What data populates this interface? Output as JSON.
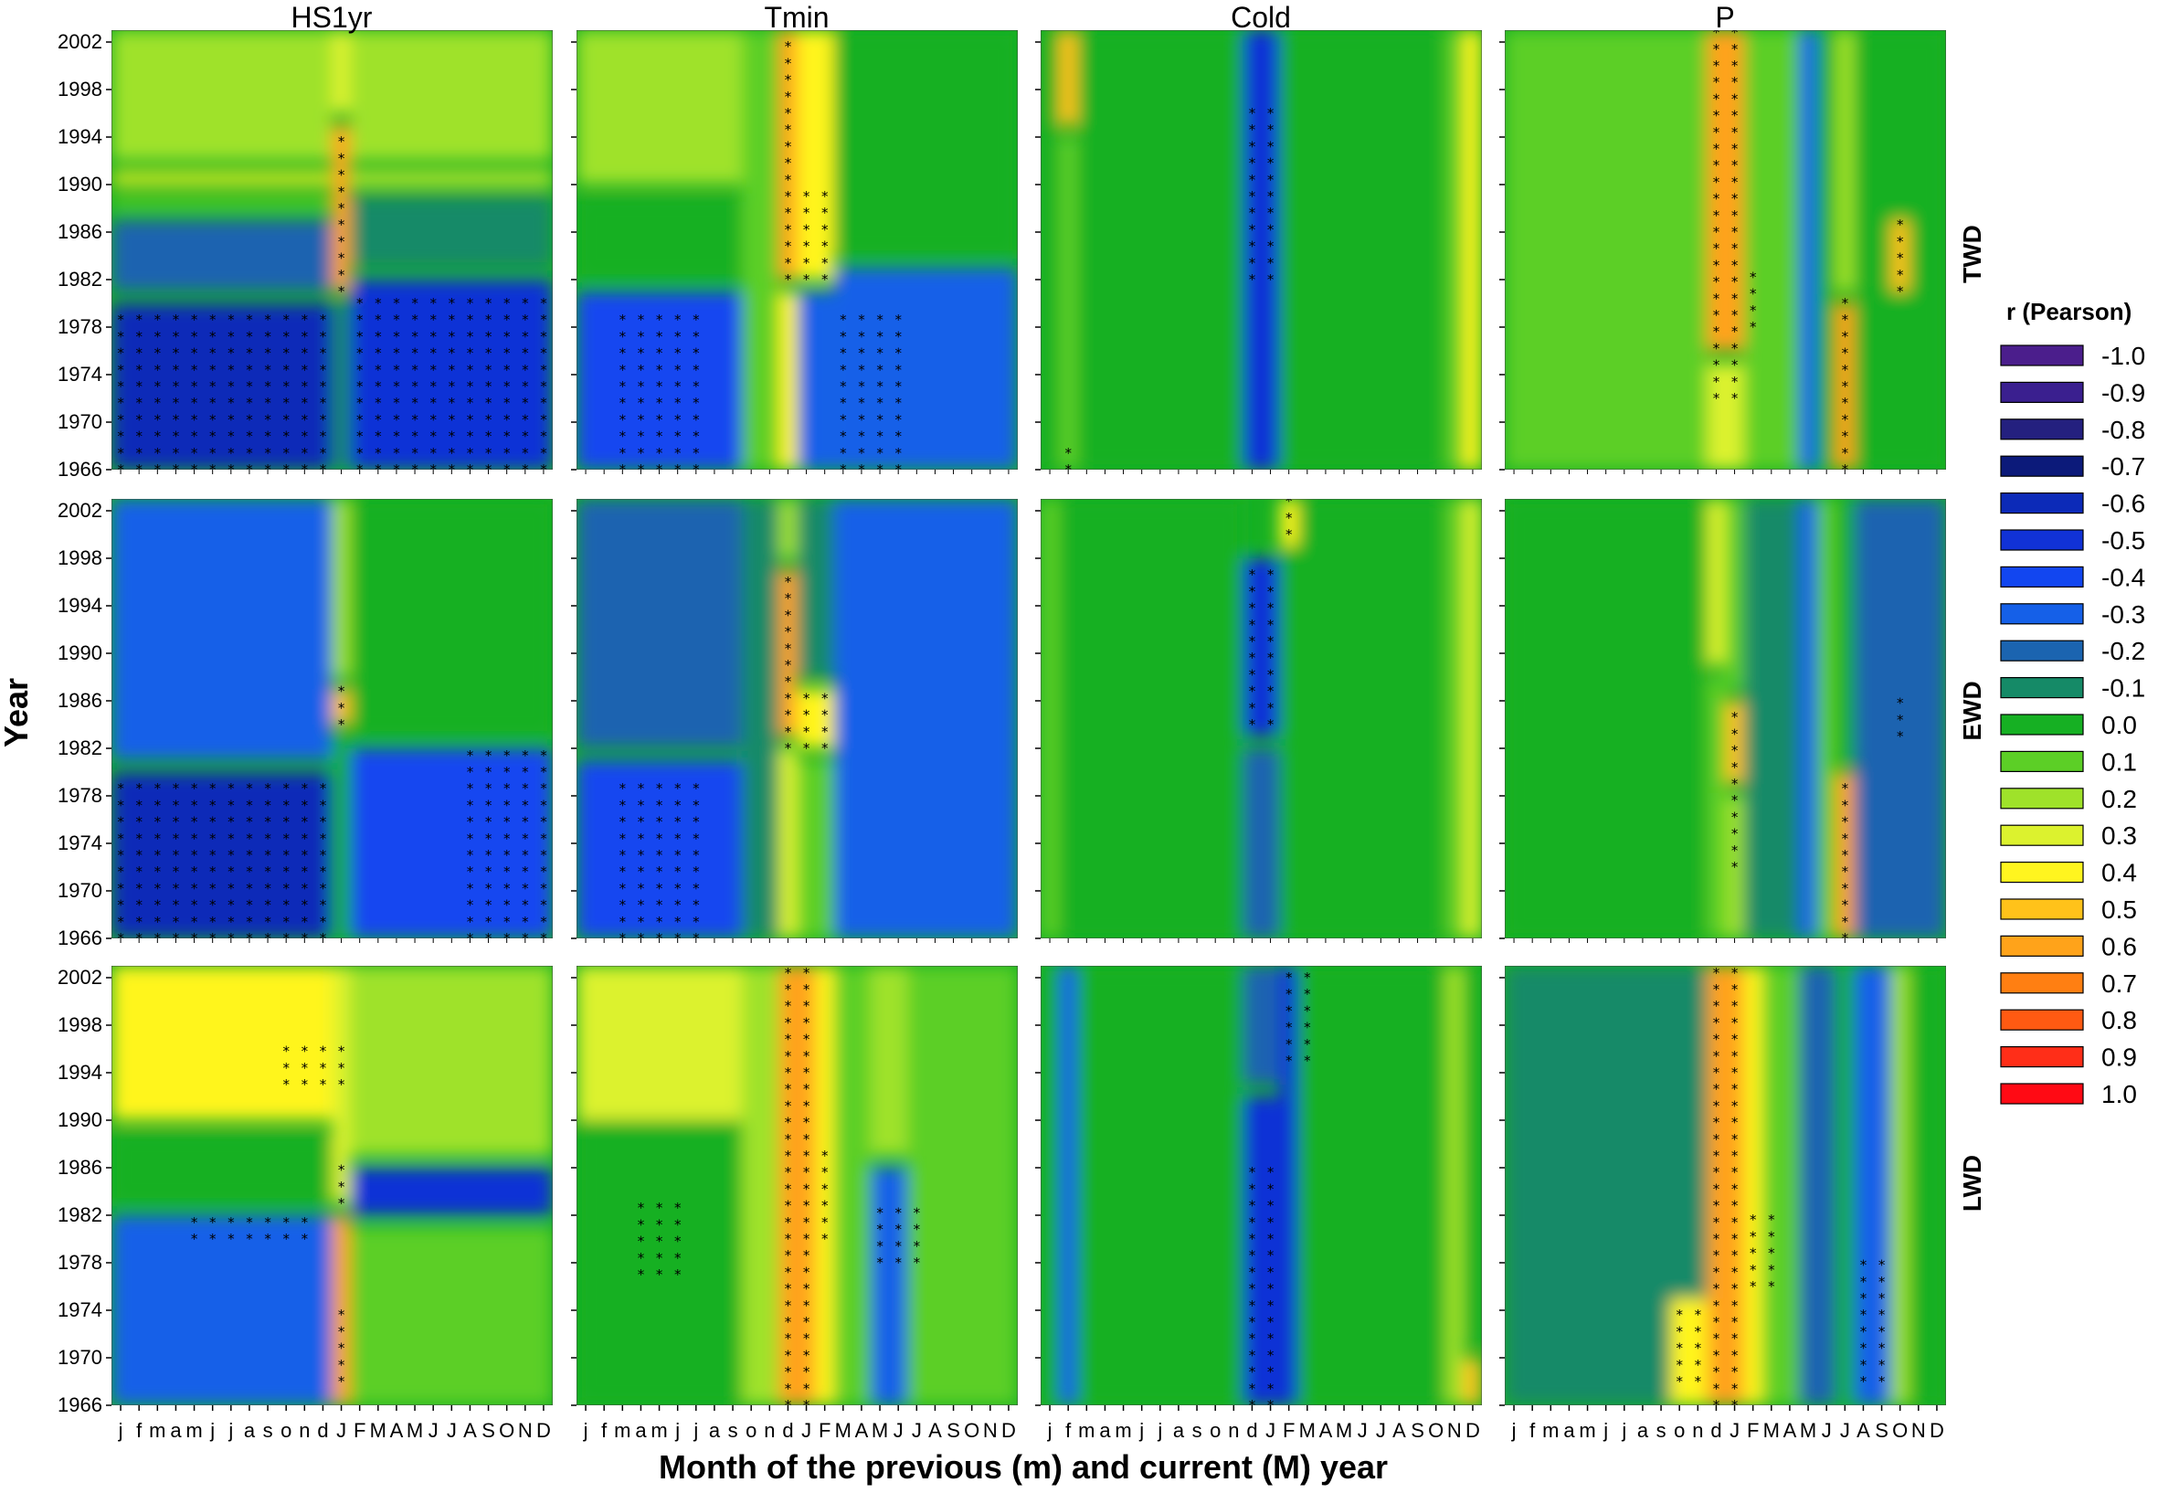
{
  "chart_data": {
    "type": "heatmap",
    "title": "",
    "xlabel": "Month of the previous (m) and current (M) year",
    "ylabel": "Year",
    "columns": [
      "HS1yr",
      "Tmin",
      "Cold",
      "P"
    ],
    "rows": [
      "TWD",
      "EWD",
      "LWD"
    ],
    "x_categories": [
      "j",
      "f",
      "m",
      "a",
      "m",
      "j",
      "j",
      "a",
      "s",
      "o",
      "n",
      "d",
      "J",
      "F",
      "M",
      "A",
      "M",
      "J",
      "J",
      "A",
      "S",
      "O",
      "N",
      "D"
    ],
    "y_ticks": [
      2002,
      1998,
      1994,
      1990,
      1986,
      1982,
      1978,
      1974,
      1970,
      1966
    ],
    "ylim": [
      1966,
      2003
    ],
    "legend": {
      "title": "r (Pearson)",
      "entries": [
        {
          "label": "-1.0",
          "color": "#4b1e8c"
        },
        {
          "label": "-0.9",
          "color": "#3a1f8f"
        },
        {
          "label": "-0.8",
          "color": "#24207f"
        },
        {
          "label": "-0.7",
          "color": "#0c1a7a"
        },
        {
          "label": "-0.6",
          "color": "#0c2ab8"
        },
        {
          "label": "-0.5",
          "color": "#1132d6"
        },
        {
          "label": "-0.4",
          "color": "#1246f0"
        },
        {
          "label": "-0.3",
          "color": "#1560e8"
        },
        {
          "label": "-0.2",
          "color": "#1b64b0"
        },
        {
          "label": "-0.1",
          "color": "#158a67"
        },
        {
          "label": "0.0",
          "color": "#16b023"
        },
        {
          "label": "0.1",
          "color": "#5ccf26"
        },
        {
          "label": "0.2",
          "color": "#9fe22a"
        },
        {
          "label": "0.3",
          "color": "#dcf22e"
        },
        {
          "label": "0.4",
          "color": "#fff51f"
        },
        {
          "label": "0.5",
          "color": "#ffc21a"
        },
        {
          "label": "0.6",
          "color": "#ffa31a"
        },
        {
          "label": "0.7",
          "color": "#ff7f12"
        },
        {
          "label": "0.8",
          "color": "#ff5a12"
        },
        {
          "label": "0.9",
          "color": "#ff2e18"
        },
        {
          "label": "1.0",
          "color": "#ff0a14"
        }
      ]
    },
    "significance_marker": "*",
    "panels": [
      {
        "row": "TWD",
        "column": "HS1yr",
        "bands": [
          [
            0,
            11,
            1966,
            1980,
            -0.6
          ],
          [
            0,
            11,
            1981,
            1987,
            -0.2
          ],
          [
            0,
            11,
            1988,
            1989,
            0.1
          ],
          [
            0,
            11,
            1990,
            1991,
            0.4
          ],
          [
            0,
            11,
            1992,
            2003,
            0.2
          ],
          [
            12,
            12,
            1966,
            1980,
            -0.1
          ],
          [
            12,
            12,
            1981,
            1995,
            0.55
          ],
          [
            12,
            12,
            1996,
            2003,
            0.3
          ],
          [
            13,
            23,
            1966,
            1982,
            -0.45
          ],
          [
            13,
            23,
            1983,
            1989,
            -0.1
          ],
          [
            13,
            23,
            1990,
            1991,
            0.35
          ],
          [
            13,
            23,
            1992,
            2003,
            0.2
          ]
        ],
        "stars": [
          [
            0,
            11,
            1966,
            1979
          ],
          [
            12,
            12,
            1981,
            1994
          ],
          [
            13,
            23,
            1966,
            1981
          ]
        ]
      },
      {
        "row": "TWD",
        "column": "Tmin",
        "bands": [
          [
            0,
            8,
            1966,
            1981,
            -0.4
          ],
          [
            0,
            8,
            1982,
            1989,
            0.0
          ],
          [
            0,
            8,
            1990,
            2003,
            0.2
          ],
          [
            9,
            10,
            1966,
            2003,
            0.1
          ],
          [
            11,
            11,
            1966,
            1981,
            0.4
          ],
          [
            11,
            11,
            1982,
            2003,
            0.55
          ],
          [
            12,
            13,
            1966,
            1981,
            -0.3
          ],
          [
            12,
            13,
            1982,
            2003,
            0.45
          ],
          [
            14,
            23,
            1966,
            1983,
            -0.35
          ],
          [
            14,
            23,
            1984,
            2003,
            0.05
          ]
        ],
        "stars": [
          [
            11,
            11,
            1982,
            2003
          ],
          [
            12,
            13,
            1982,
            1990
          ],
          [
            2,
            6,
            1966,
            1979
          ],
          [
            14,
            17,
            1966,
            1980
          ]
        ]
      },
      {
        "row": "TWD",
        "column": "Cold",
        "bands": [
          [
            0,
            0,
            1966,
            2003,
            0.0
          ],
          [
            1,
            1,
            1966,
            1994,
            0.1
          ],
          [
            1,
            1,
            1995,
            2003,
            0.5
          ],
          [
            2,
            10,
            1966,
            2003,
            0.0
          ],
          [
            11,
            12,
            1966,
            2003,
            -0.45
          ],
          [
            13,
            21,
            1966,
            2003,
            0.0
          ],
          [
            22,
            22,
            1966,
            2003,
            0.15
          ],
          [
            23,
            23,
            1966,
            2003,
            0.45
          ]
        ],
        "stars": [
          [
            11,
            12,
            1982,
            1997
          ],
          [
            1,
            1,
            1966,
            1968
          ]
        ]
      },
      {
        "row": "TWD",
        "column": "P",
        "bands": [
          [
            0,
            10,
            1966,
            2003,
            0.15
          ],
          [
            11,
            12,
            1966,
            1975,
            0.3
          ],
          [
            11,
            12,
            1976,
            2003,
            0.55
          ],
          [
            13,
            15,
            1966,
            2003,
            0.1
          ],
          [
            16,
            16,
            1966,
            2003,
            -0.3
          ],
          [
            17,
            17,
            1966,
            2003,
            0.0
          ],
          [
            18,
            18,
            1966,
            1980,
            0.6
          ],
          [
            18,
            18,
            1981,
            2003,
            0.2
          ],
          [
            19,
            23,
            1966,
            2003,
            0.05
          ],
          [
            21,
            21,
            1981,
            1987,
            0.5
          ]
        ],
        "stars": [
          [
            11,
            12,
            1972,
            2003
          ],
          [
            13,
            13,
            1978,
            1983
          ],
          [
            18,
            18,
            1966,
            1981
          ],
          [
            21,
            21,
            1981,
            1987
          ]
        ]
      },
      {
        "row": "EWD",
        "column": "HS1yr",
        "bands": [
          [
            0,
            11,
            1966,
            1980,
            -0.6
          ],
          [
            0,
            11,
            1981,
            2003,
            -0.35
          ],
          [
            12,
            12,
            1966,
            1983,
            0.0
          ],
          [
            12,
            12,
            1984,
            1987,
            0.5
          ],
          [
            12,
            12,
            1988,
            2003,
            0.2
          ],
          [
            13,
            23,
            1966,
            1982,
            -0.4
          ],
          [
            13,
            23,
            1983,
            2003,
            0.0
          ]
        ],
        "stars": [
          [
            0,
            11,
            1966,
            1980
          ],
          [
            12,
            12,
            1984,
            1987
          ],
          [
            19,
            23,
            1966,
            1982
          ]
        ]
      },
      {
        "row": "EWD",
        "column": "Tmin",
        "bands": [
          [
            0,
            8,
            1966,
            1981,
            -0.4
          ],
          [
            0,
            8,
            1982,
            2003,
            -0.2
          ],
          [
            9,
            10,
            1966,
            2003,
            -0.1
          ],
          [
            11,
            11,
            1966,
            1982,
            0.3
          ],
          [
            11,
            11,
            1983,
            1997,
            0.55
          ],
          [
            11,
            11,
            1998,
            2003,
            0.2
          ],
          [
            12,
            13,
            1966,
            1981,
            0.1
          ],
          [
            12,
            13,
            1982,
            1987,
            0.45
          ],
          [
            12,
            13,
            1988,
            2003,
            -0.1
          ],
          [
            14,
            23,
            1966,
            2003,
            -0.35
          ]
        ],
        "stars": [
          [
            11,
            11,
            1982,
            1997
          ],
          [
            12,
            13,
            1982,
            1987
          ],
          [
            2,
            6,
            1966,
            1980
          ]
        ]
      },
      {
        "row": "EWD",
        "column": "Cold",
        "bands": [
          [
            0,
            0,
            1966,
            2003,
            0.15
          ],
          [
            1,
            10,
            1966,
            2003,
            0.0
          ],
          [
            11,
            12,
            1966,
            1982,
            -0.2
          ],
          [
            11,
            12,
            1983,
            1998,
            -0.45
          ],
          [
            13,
            21,
            1966,
            2003,
            0.0
          ],
          [
            13,
            13,
            1999,
            2003,
            0.45
          ],
          [
            22,
            22,
            1966,
            2003,
            0.1
          ],
          [
            23,
            23,
            1966,
            2003,
            0.3
          ]
        ],
        "stars": [
          [
            11,
            12,
            1984,
            1998
          ],
          [
            13,
            13,
            2000,
            2003
          ]
        ]
      },
      {
        "row": "EWD",
        "column": "P",
        "bands": [
          [
            0,
            10,
            1966,
            2003,
            0.0
          ],
          [
            11,
            11,
            1966,
            1988,
            0.1
          ],
          [
            11,
            11,
            1989,
            2003,
            0.3
          ],
          [
            12,
            12,
            1966,
            1978,
            0.2
          ],
          [
            12,
            12,
            1979,
            1986,
            0.5
          ],
          [
            12,
            12,
            1987,
            2003,
            0.1
          ],
          [
            13,
            15,
            1966,
            2003,
            -0.1
          ],
          [
            16,
            16,
            1966,
            2003,
            -0.35
          ],
          [
            17,
            17,
            1966,
            2003,
            0.1
          ],
          [
            18,
            18,
            1966,
            1980,
            0.55
          ],
          [
            18,
            18,
            1981,
            2003,
            0.0
          ],
          [
            19,
            23,
            1966,
            2003,
            -0.2
          ]
        ],
        "stars": [
          [
            12,
            12,
            1972,
            1986
          ],
          [
            18,
            18,
            1966,
            1980
          ],
          [
            21,
            21,
            1983,
            1987
          ]
        ]
      },
      {
        "row": "LWD",
        "column": "HS1yr",
        "bands": [
          [
            0,
            11,
            1966,
            1982,
            -0.3
          ],
          [
            0,
            11,
            1983,
            1989,
            0.0
          ],
          [
            0,
            11,
            1990,
            2003,
            0.4
          ],
          [
            12,
            12,
            1966,
            1982,
            0.55
          ],
          [
            12,
            12,
            1983,
            2003,
            0.35
          ],
          [
            13,
            23,
            1966,
            1981,
            0.15
          ],
          [
            13,
            23,
            1982,
            1986,
            -0.45
          ],
          [
            13,
            23,
            1987,
            2003,
            0.25
          ]
        ],
        "stars": [
          [
            12,
            12,
            1968,
            1974
          ],
          [
            12,
            12,
            1983,
            1987
          ],
          [
            4,
            10,
            1980,
            1982
          ],
          [
            9,
            12,
            1993,
            1996
          ]
        ]
      },
      {
        "row": "LWD",
        "column": "Tmin",
        "bands": [
          [
            0,
            8,
            1966,
            2003,
            0.0
          ],
          [
            0,
            8,
            1990,
            2003,
            0.3
          ],
          [
            9,
            10,
            1966,
            2003,
            0.2
          ],
          [
            11,
            12,
            1966,
            2003,
            0.6
          ],
          [
            13,
            13,
            1966,
            2003,
            0.4
          ],
          [
            14,
            15,
            1966,
            2003,
            0.1
          ],
          [
            16,
            17,
            1966,
            1986,
            -0.35
          ],
          [
            16,
            17,
            1987,
            2003,
            0.25
          ],
          [
            18,
            23,
            1966,
            2003,
            0.1
          ]
        ],
        "stars": [
          [
            11,
            12,
            1966,
            2003
          ],
          [
            13,
            13,
            1980,
            1988
          ],
          [
            3,
            5,
            1977,
            1984
          ],
          [
            16,
            18,
            1978,
            1983
          ]
        ]
      },
      {
        "row": "LWD",
        "column": "Cold",
        "bands": [
          [
            0,
            0,
            1966,
            2003,
            0.0
          ],
          [
            1,
            1,
            1966,
            2003,
            -0.3
          ],
          [
            2,
            10,
            1966,
            2003,
            0.0
          ],
          [
            11,
            12,
            1966,
            1992,
            -0.45
          ],
          [
            11,
            12,
            1993,
            2003,
            -0.2
          ],
          [
            13,
            13,
            1966,
            2003,
            -0.45
          ],
          [
            14,
            21,
            1966,
            2003,
            0.0
          ],
          [
            22,
            22,
            1966,
            2003,
            0.2
          ],
          [
            23,
            23,
            1966,
            1970,
            0.5
          ],
          [
            23,
            23,
            1971,
            2003,
            0.0
          ]
        ],
        "stars": [
          [
            11,
            12,
            1966,
            1987
          ],
          [
            13,
            14,
            1995,
            2003
          ]
        ]
      },
      {
        "row": "LWD",
        "column": "P",
        "bands": [
          [
            0,
            10,
            1966,
            2003,
            -0.1
          ],
          [
            9,
            10,
            1966,
            1975,
            0.45
          ],
          [
            11,
            12,
            1966,
            2003,
            0.6
          ],
          [
            13,
            13,
            1966,
            2003,
            0.45
          ],
          [
            14,
            15,
            1966,
            2003,
            0.1
          ],
          [
            16,
            17,
            1966,
            2003,
            -0.2
          ],
          [
            18,
            18,
            1966,
            2003,
            0.05
          ],
          [
            19,
            20,
            1966,
            2003,
            -0.3
          ],
          [
            21,
            21,
            1966,
            2003,
            0.2
          ],
          [
            22,
            23,
            1966,
            2003,
            0.0
          ]
        ],
        "stars": [
          [
            11,
            12,
            1966,
            2003
          ],
          [
            13,
            14,
            1976,
            1983
          ],
          [
            9,
            10,
            1968,
            1975
          ],
          [
            19,
            20,
            1968,
            1978
          ]
        ]
      }
    ]
  }
}
